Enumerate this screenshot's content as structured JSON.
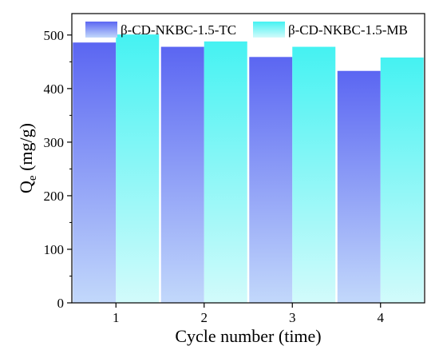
{
  "chart_data": {
    "type": "bar",
    "title": "",
    "xlabel": "Cycle number (time)",
    "ylabel_main": "Q",
    "ylabel_sub": "e",
    "ylabel_unit": " (mg/g)",
    "categories": [
      "1",
      "2",
      "3",
      "4"
    ],
    "ylim": [
      0,
      540
    ],
    "yticks": [
      0,
      100,
      200,
      300,
      400,
      500
    ],
    "grid": false,
    "legend_position": "top",
    "series": [
      {
        "name": "β-CD-NKBC-1.5-TC",
        "values": [
          486,
          478,
          459,
          433
        ],
        "color_top": "#5b66f2",
        "color_bottom": "#c2d8fb"
      },
      {
        "name": "β-CD-NKBC-1.5-MB",
        "values": [
          501,
          488,
          478,
          458
        ],
        "color_top": "#45f2f2",
        "color_bottom": "#d2fbfb"
      }
    ]
  }
}
